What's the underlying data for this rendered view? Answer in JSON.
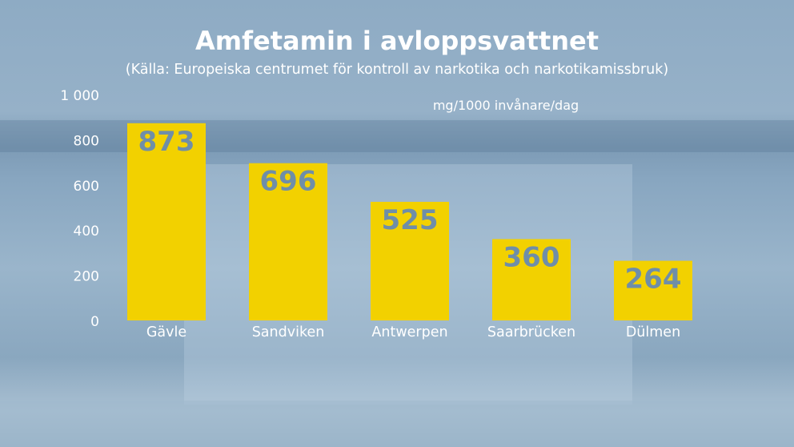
{
  "chart_data": {
    "type": "bar",
    "title": "Amfetamin i avloppsvattnet",
    "subtitle": "(Källa: Europeiska centrumet för kontroll av narkotika och narkotikamissbruk)",
    "unit_label": "mg/1000 invånare/dag",
    "categories": [
      "Gävle",
      "Sandviken",
      "Antwerpen",
      "Saarbrücken",
      "Dülmen"
    ],
    "values": [
      873,
      696,
      525,
      360,
      264
    ],
    "value_labels": [
      "873",
      "696",
      "525",
      "360",
      "264"
    ],
    "ylim": [
      0,
      1000
    ],
    "yticks": [
      0,
      200,
      400,
      600,
      800,
      1000
    ],
    "ytick_labels": [
      "0",
      "200",
      "400",
      "600",
      "800",
      "1 000"
    ],
    "grid": false,
    "bar_color": "#f2d100",
    "value_label_color": "#6f8ea8"
  }
}
